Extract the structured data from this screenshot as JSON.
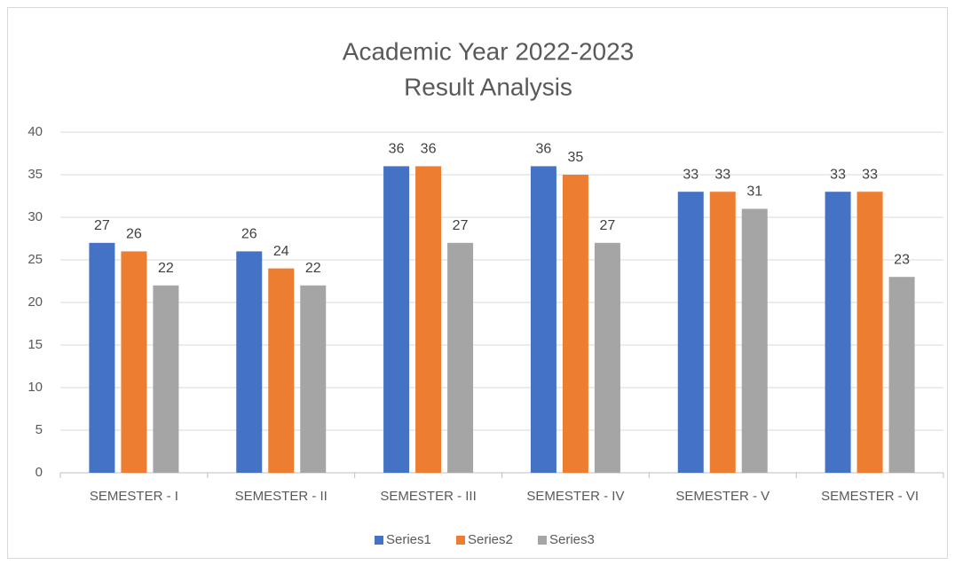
{
  "chart_data": {
    "type": "bar",
    "title": [
      "Academic Year 2022-2023",
      "Result Analysis"
    ],
    "categories": [
      "SEMESTER - I",
      "SEMESTER - II",
      "SEMESTER - III",
      "SEMESTER - IV",
      "SEMESTER - V",
      "SEMESTER - VI"
    ],
    "series": [
      {
        "name": "Series1",
        "color": "#4472c4",
        "values": [
          27,
          26,
          36,
          36,
          33,
          33
        ]
      },
      {
        "name": "Series2",
        "color": "#ed7d31",
        "values": [
          26,
          24,
          36,
          35,
          33,
          33
        ]
      },
      {
        "name": "Series3",
        "color": "#a5a5a5",
        "values": [
          22,
          22,
          27,
          27,
          31,
          23
        ]
      }
    ],
    "ylim": [
      0,
      40
    ],
    "yticks": [
      0,
      5,
      10,
      15,
      20,
      25,
      30,
      35,
      40
    ],
    "grid": true,
    "legend": "bottom"
  }
}
